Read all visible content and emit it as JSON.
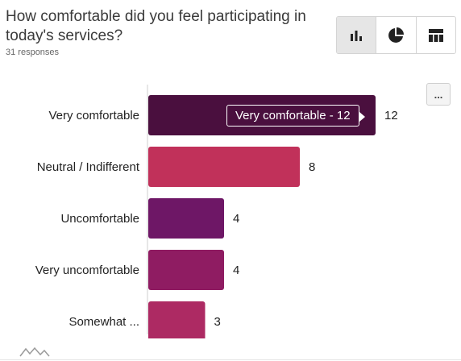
{
  "question": {
    "title": "How comfortable did you feel participating in today's services?",
    "responses": "31 responses"
  },
  "view_toggle": {
    "items": [
      {
        "icon": "bar-chart-icon",
        "active": true
      },
      {
        "icon": "pie-chart-icon",
        "active": false
      },
      {
        "icon": "table-icon",
        "active": false
      }
    ]
  },
  "more_menu_label": "...",
  "tooltip": {
    "text": "Very comfortable - 12"
  },
  "chart_data": {
    "type": "bar",
    "orientation": "horizontal",
    "categories": [
      "Very comfortable",
      "Neutral / Indifferent",
      "Uncomfortable",
      "Very uncomfortable",
      "Somewhat ..."
    ],
    "values": [
      12,
      8,
      4,
      4,
      3
    ],
    "colors": [
      "#4a0f3e",
      "#c1315a",
      "#6e1766",
      "#8f1c62",
      "#ad2a63"
    ],
    "xlim": [
      0,
      12
    ],
    "grid": false,
    "legend": "none"
  }
}
